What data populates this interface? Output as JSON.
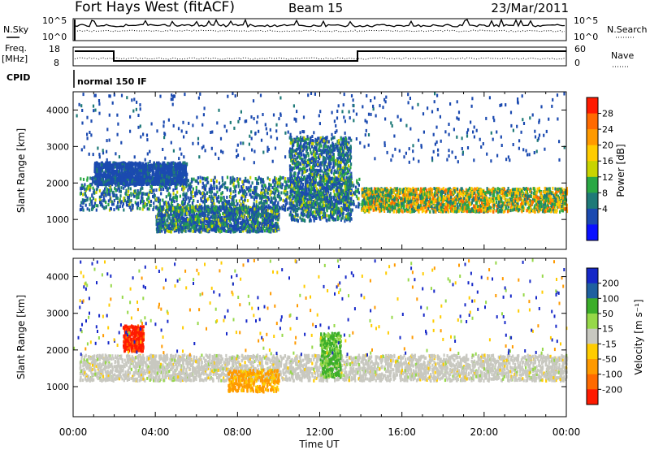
{
  "header": {
    "site": "Fort Hays West (fitACF)",
    "beam": "Beam 15",
    "date": "23/Mar/2011"
  },
  "strip_labels": {
    "nsky": "N.Sky",
    "freq_top": "Freq.",
    "freq_unit": "[MHz]",
    "cpid": "CPID",
    "nsearch": "N.Search",
    "nave": "Nave",
    "cpid_value": "normal 150 IF"
  },
  "strip_ticks": {
    "noise_left": [
      "10^5",
      "10^0"
    ],
    "noise_right": [
      "10^5",
      "10^0"
    ],
    "freq_left": [
      "18",
      "8"
    ],
    "nave_right": [
      "60",
      "0"
    ]
  },
  "chart_data": [
    {
      "type": "heatmap",
      "panel": "power",
      "ylabel": "Slant Range [km]",
      "xlabel": "Time UT",
      "x_ticks": [
        "00:00",
        "04:00",
        "08:00",
        "12:00",
        "16:00",
        "20:00",
        "00:00"
      ],
      "y_ticks": [
        1000,
        2000,
        3000,
        4000
      ],
      "ylim": [
        180,
        4500
      ],
      "xlim_hours": [
        0,
        24
      ],
      "colorbar_label": "Power [dB]",
      "colorbar_ticks": [
        28,
        24,
        20,
        16,
        12,
        8,
        4
      ],
      "colorbar_colors": [
        "#ff1a00",
        "#ff6a00",
        "#ff9a00",
        "#ffcc00",
        "#c8d400",
        "#2aa844",
        "#1f7a78",
        "#1b4ab0",
        "#0a10ff"
      ],
      "regions": [
        {
          "name": "main band",
          "t": [
            0.3,
            13.9
          ],
          "r": [
            1300,
            2200
          ],
          "level": "mid"
        },
        {
          "name": "post-noon band",
          "t": [
            14.0,
            24.0
          ],
          "r": [
            1250,
            1900
          ],
          "level": "high"
        },
        {
          "name": "upper arc",
          "t": [
            1.0,
            5.5
          ],
          "r": [
            2000,
            2600
          ],
          "level": "low"
        },
        {
          "name": "morning diagonal",
          "t": [
            4.0,
            10.0
          ],
          "r": [
            700,
            1400
          ],
          "level": "mid"
        },
        {
          "name": "noon descent",
          "t": [
            10.5,
            13.5
          ],
          "r": [
            1000,
            3300
          ],
          "level": "mid"
        },
        {
          "name": "far echoes",
          "t": [
            0.0,
            24.0
          ],
          "r": [
            2600,
            4500
          ],
          "level": "low"
        }
      ]
    },
    {
      "type": "heatmap",
      "panel": "velocity",
      "ylabel": "Slant Range [km]",
      "xlabel": "Time UT",
      "x_ticks": [
        "00:00",
        "04:00",
        "08:00",
        "12:00",
        "16:00",
        "20:00",
        "00:00"
      ],
      "y_ticks": [
        1000,
        2000,
        3000,
        4000
      ],
      "ylim": [
        180,
        4500
      ],
      "xlim_hours": [
        0,
        24
      ],
      "colorbar_label": "Velocity [m s⁻¹]",
      "colorbar_ticks": [
        200,
        100,
        50,
        15,
        -15,
        -50,
        -100,
        -200
      ],
      "colorbar_colors": [
        "#1628c8",
        "#1e60a0",
        "#3cae2a",
        "#96d848",
        "#c8c8c0",
        "#ffcc00",
        "#ff9a00",
        "#ff6a00",
        "#ff1a00"
      ],
      "regions": [
        {
          "name": "ground scatter band",
          "t": [
            0.3,
            24.0
          ],
          "r": [
            1200,
            1900
          ],
          "velocity": "~0"
        },
        {
          "name": "red patch",
          "t": [
            2.4,
            3.4
          ],
          "r": [
            2000,
            2700
          ],
          "velocity": "-200"
        },
        {
          "name": "orange streak",
          "t": [
            7.5,
            10.0
          ],
          "r": [
            900,
            1500
          ],
          "velocity": "-50"
        },
        {
          "name": "green descent",
          "t": [
            12.0,
            13.0
          ],
          "r": [
            1300,
            2500
          ],
          "velocity": "50"
        }
      ]
    }
  ]
}
